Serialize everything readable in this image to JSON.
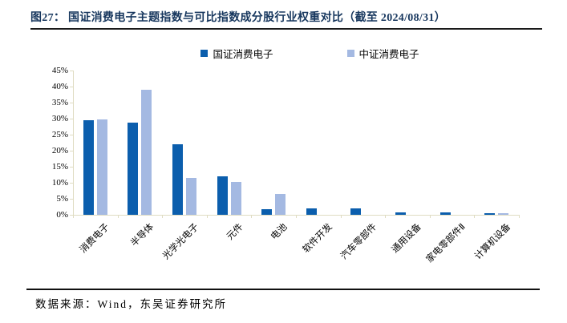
{
  "title": "图27：  国证消费电子主题指数与可比指数成分股行业权重对比（截至 2024/08/31）",
  "footer": {
    "source_text": "数据来源：Wind，东吴证券研究所"
  },
  "colors": {
    "series1": "#0B5EAD",
    "series2": "#A4B9E2",
    "axis": "#DFDCC2",
    "title_text": "#17375E",
    "rule": "#1A1A1A"
  },
  "legend": {
    "items": [
      {
        "label": "国证消费电子"
      },
      {
        "label": "中证消费电子"
      }
    ]
  },
  "chart_data": {
    "type": "bar",
    "title": "国证消费电子主题指数与可比指数成分股行业权重对比（截至 2024/08/31）",
    "categories": [
      "消费电子",
      "半导体",
      "光学光电子",
      "元件",
      "电池",
      "软件开发",
      "汽车零部件",
      "通用设备",
      "家电零部件Ⅱ",
      "计算机设备"
    ],
    "series": [
      {
        "name": "国证消费电子",
        "color": "#0B5EAD",
        "values": [
          29.6,
          28.7,
          22.1,
          11.9,
          1.8,
          1.9,
          1.9,
          0.8,
          0.7,
          0.4
        ]
      },
      {
        "name": "中证消费电子",
        "color": "#A4B9E2",
        "values": [
          29.7,
          38.9,
          11.5,
          10.2,
          6.6,
          0,
          0,
          0,
          0,
          0.6
        ]
      }
    ],
    "xlabel": "",
    "ylabel": "",
    "ylim": [
      0,
      45
    ],
    "ytick_step": 5,
    "ytick_labels": [
      "0%",
      "5%",
      "10%",
      "15%",
      "20%",
      "25%",
      "30%",
      "35%",
      "40%",
      "45%"
    ],
    "grid": false,
    "legend_position": "top"
  }
}
